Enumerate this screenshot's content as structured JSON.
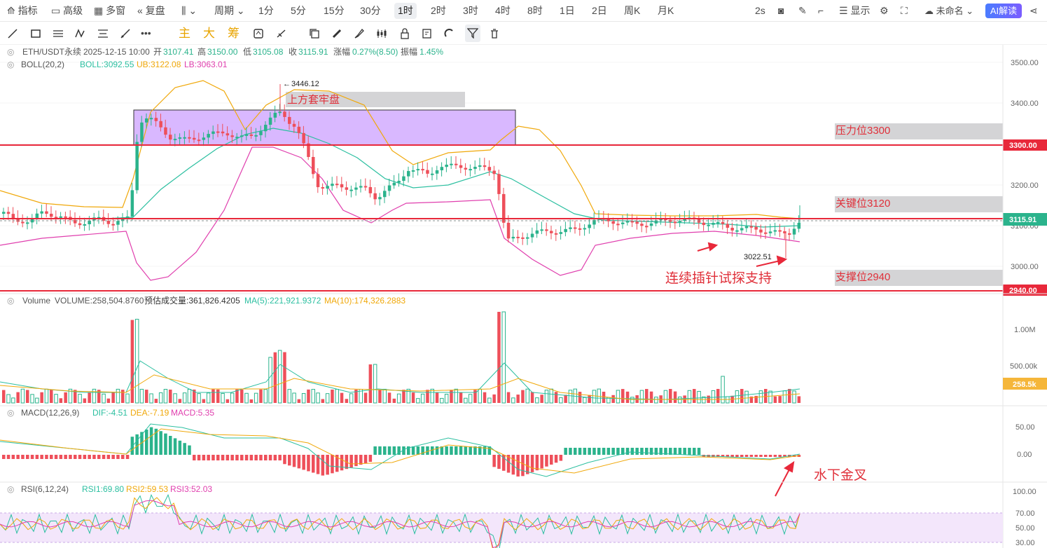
{
  "topbar": {
    "indicators": "指标",
    "advanced": "高级",
    "multiwin": "多窗",
    "replay": "复盘",
    "period": "周期",
    "intervals": [
      "1分",
      "5分",
      "15分",
      "30分",
      "1时",
      "2时",
      "3时",
      "4时",
      "8时",
      "1日",
      "2日",
      "周K",
      "月K"
    ],
    "active_interval": "1时",
    "refresh": "2s",
    "display": "显示",
    "workspace": "未命名",
    "ai": "AI解读"
  },
  "drawbar": {
    "main": "主",
    "big": "大",
    "chip": "筹"
  },
  "header": {
    "symbol": "ETH/USDT永续",
    "datetime": "2025-12-15 10:00",
    "open_label": "开",
    "open": "3107.41",
    "high_label": "高",
    "high": "3150.00",
    "low_label": "低",
    "low": "3105.08",
    "close_label": "收",
    "close": "3115.91",
    "change_label": "涨幅",
    "change": "0.27%(8.50)",
    "amp_label": "振幅",
    "amp": "1.45%"
  },
  "boll": {
    "name": "BOLL(20,2)",
    "boll": "BOLL:3092.55",
    "ub": "UB:3122.08",
    "lb": "LB:3063.01"
  },
  "volume": {
    "name": "Volume",
    "vol": "VOLUME:258,504.8760",
    "est": "预估成交量:361,826.4205",
    "ma5": "MA(5):221,921.9372",
    "ma10": "MA(10):174,326.2883",
    "badge": "258.5k",
    "ticks": [
      "1.00M",
      "500.00k"
    ]
  },
  "macd": {
    "name": "MACD(12,26,9)",
    "dif": "DIF:-4.51",
    "dea": "DEA:-7.19",
    "macd": "MACD:5.35",
    "ticks": [
      "50.00",
      "0.00"
    ]
  },
  "rsi": {
    "name": "RSI(6,12,24)",
    "rsi1": "RSI1:69.80",
    "rsi2": "RSI2:59.53",
    "rsi3": "RSI3:52.03",
    "ticks": [
      "100.00",
      "70.00",
      "50.00",
      "30.00"
    ]
  },
  "price_axis": {
    "ticks": [
      "3500.00",
      "3400.00",
      "3300.00",
      "3200.00",
      "3100.00",
      "3000.00"
    ],
    "line_3300": "3300.00",
    "line_2940": "2940.00",
    "current": "3115.91"
  },
  "annotations": {
    "high_mark": "3446.12",
    "low_mark": "3022.51",
    "trap": "上方套牢盘",
    "resistance": "压力位3300",
    "key": "关键位3120",
    "support": "支撑位2940",
    "probe": "连续插针试探支持",
    "golden_cross": "水下金叉"
  },
  "colors": {
    "up": "#2bb38c",
    "down": "#ee4f5a",
    "hline": "#e8283a",
    "boll_mid": "#2bbfa0",
    "boll_ub": "#f0a80a",
    "boll_lb": "#e03fae",
    "zone": "#c79bff"
  }
}
